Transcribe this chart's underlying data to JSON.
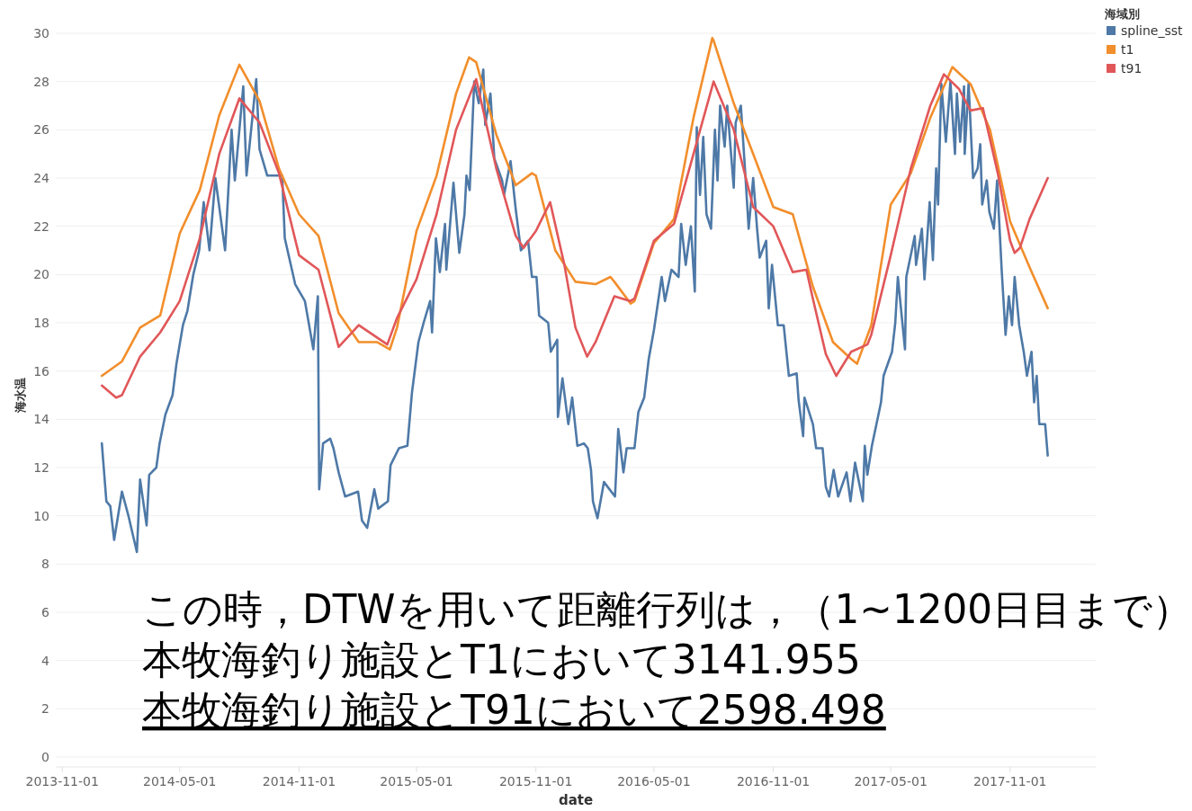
{
  "chart_data": {
    "type": "line",
    "xlabel": "date",
    "ylabel": "海水温",
    "legend_title": "海域別",
    "legend": "top right",
    "grid": "y",
    "xlim": [
      "2013-10-22",
      "2018-03-13"
    ],
    "ylim": [
      0,
      30
    ],
    "xticks": [
      "2013-11-01",
      "2014-05-01",
      "2014-11-01",
      "2015-05-01",
      "2015-11-01",
      "2016-05-01",
      "2016-11-01",
      "2017-05-01",
      "2017-11-01"
    ],
    "yticks": [
      0,
      2,
      4,
      6,
      8,
      10,
      12,
      14,
      16,
      18,
      20,
      22,
      24,
      26,
      28,
      30
    ],
    "annotations": [
      "この時，DTWを用いて距離行列は，（1~1200日目まで）",
      "本牧海釣り施設とT1において3141.955",
      "本牧海釣り施設とT91において2598.498"
    ],
    "series": [
      {
        "name": "spline_sst",
        "color": "#4e79a7",
        "x": [
          "2014-01-01",
          "2014-01-08",
          "2014-01-14",
          "2014-01-20",
          "2014-02-01",
          "2014-02-11",
          "2014-02-24",
          "2014-03-01",
          "2014-03-11",
          "2014-03-15",
          "2014-03-26",
          "2014-03-31",
          "2014-04-09",
          "2014-04-20",
          "2014-04-26",
          "2014-05-06",
          "2014-05-13",
          "2014-05-22",
          "2014-05-31",
          "2014-06-07",
          "2014-06-16",
          "2014-06-25",
          "2014-07-10",
          "2014-07-20",
          "2014-07-25",
          "2014-08-07",
          "2014-08-12",
          "2014-08-27",
          "2014-09-01",
          "2014-09-13",
          "2014-10-06",
          "2014-10-10",
          "2014-10-26",
          "2014-11-10",
          "2014-11-23",
          "2014-11-30",
          "2014-12-02",
          "2014-12-08",
          "2014-12-19",
          "2014-12-24",
          "2015-01-01",
          "2015-01-11",
          "2015-01-31",
          "2015-02-06",
          "2015-02-14",
          "2015-02-25",
          "2015-03-03",
          "2015-03-18",
          "2015-03-22",
          "2015-04-04",
          "2015-04-17",
          "2015-04-24",
          "2015-05-04",
          "2015-05-12",
          "2015-05-22",
          "2015-05-25",
          "2015-05-31",
          "2015-06-06",
          "2015-06-14",
          "2015-06-16",
          "2015-06-27",
          "2015-07-06",
          "2015-07-14",
          "2015-07-17",
          "2015-07-22",
          "2015-07-29",
          "2015-08-05",
          "2015-08-12",
          "2015-08-15",
          "2015-08-23",
          "2015-08-29",
          "2015-09-10",
          "2015-09-13",
          "2015-09-23",
          "2015-10-01",
          "2015-10-09",
          "2015-10-20",
          "2015-10-26",
          "2015-11-02",
          "2015-11-06",
          "2015-11-20",
          "2015-11-24",
          "2015-12-04",
          "2015-12-05",
          "2015-12-12",
          "2015-12-21",
          "2015-12-27",
          "2016-01-04",
          "2016-01-14",
          "2016-01-20",
          "2016-01-25",
          "2016-01-28",
          "2016-02-04",
          "2016-02-14",
          "2016-03-02",
          "2016-03-07",
          "2016-03-15",
          "2016-03-20",
          "2016-04-01",
          "2016-04-07",
          "2016-04-16",
          "2016-04-23",
          "2016-05-01",
          "2016-05-13",
          "2016-05-18",
          "2016-05-28",
          "2016-06-08",
          "2016-06-12",
          "2016-06-19",
          "2016-06-27",
          "2016-07-03",
          "2016-07-06",
          "2016-07-11",
          "2016-07-16",
          "2016-07-21",
          "2016-07-28",
          "2016-08-03",
          "2016-08-07",
          "2016-08-11",
          "2016-08-18",
          "2016-08-22",
          "2016-09-01",
          "2016-09-04",
          "2016-09-12",
          "2016-09-19",
          "2016-09-24",
          "2016-10-01",
          "2016-10-07",
          "2016-10-11",
          "2016-10-21",
          "2016-10-25",
          "2016-10-30",
          "2016-11-08",
          "2016-11-17",
          "2016-11-25",
          "2016-12-07",
          "2016-12-10",
          "2016-12-17",
          "2016-12-19",
          "2017-01-01",
          "2017-01-06",
          "2017-01-16",
          "2017-01-21",
          "2017-01-26",
          "2017-02-02",
          "2017-02-09",
          "2017-02-22",
          "2017-02-28",
          "2017-03-07",
          "2017-03-19",
          "2017-03-22",
          "2017-03-26",
          "2017-04-02",
          "2017-04-09",
          "2017-04-16",
          "2017-04-20",
          "2017-05-03",
          "2017-05-08",
          "2017-05-12",
          "2017-05-23",
          "2017-05-25",
          "2017-06-07",
          "2017-06-09",
          "2017-06-18",
          "2017-06-22",
          "2017-06-30",
          "2017-07-05",
          "2017-07-10",
          "2017-07-13",
          "2017-07-18",
          "2017-07-25",
          "2017-08-01",
          "2017-08-08",
          "2017-08-11",
          "2017-08-16",
          "2017-08-22",
          "2017-08-23",
          "2017-08-29",
          "2017-09-05",
          "2017-09-12",
          "2017-09-16",
          "2017-09-19",
          "2017-09-26",
          "2017-09-30",
          "2017-10-07",
          "2017-10-12",
          "2017-10-19",
          "2017-10-25",
          "2017-10-30",
          "2017-11-04",
          "2017-11-08",
          "2017-11-15",
          "2017-11-22",
          "2017-11-27",
          "2017-12-04",
          "2017-12-08",
          "2017-12-12",
          "2017-12-16",
          "2017-12-25",
          "2017-12-29"
        ],
        "values": [
          13.0,
          10.6,
          10.4,
          9.0,
          11.0,
          10.0,
          8.5,
          11.5,
          9.6,
          11.7,
          12.0,
          13.0,
          14.2,
          15.0,
          16.3,
          17.9,
          18.5,
          20.0,
          21.0,
          23.0,
          21.0,
          24.0,
          21.0,
          26.0,
          23.9,
          27.8,
          24.1,
          28.1,
          25.2,
          24.1,
          24.1,
          21.5,
          19.6,
          18.9,
          16.9,
          19.1,
          11.1,
          13.0,
          13.2,
          12.8,
          11.8,
          10.8,
          11.0,
          9.8,
          9.5,
          11.1,
          10.3,
          10.6,
          12.1,
          12.8,
          12.9,
          15.1,
          17.2,
          18.0,
          18.9,
          17.6,
          21.5,
          20.1,
          22.1,
          20.2,
          23.8,
          20.9,
          22.5,
          24.1,
          23.5,
          28.0,
          27.1,
          28.5,
          26.2,
          27.5,
          24.8,
          23.9,
          23.3,
          24.7,
          22.7,
          21.0,
          21.4,
          19.9,
          19.9,
          18.3,
          18.0,
          16.8,
          17.3,
          14.1,
          15.7,
          13.8,
          14.9,
          12.9,
          13.0,
          12.8,
          11.9,
          10.6,
          9.9,
          11.4,
          10.8,
          13.6,
          11.8,
          12.8,
          12.8,
          14.3,
          14.9,
          16.5,
          17.7,
          19.9,
          18.9,
          20.2,
          19.9,
          22.1,
          20.4,
          22.0,
          19.3,
          26.1,
          23.3,
          25.7,
          22.5,
          21.9,
          26.0,
          23.9,
          27.0,
          25.3,
          27.0,
          23.6,
          26.3,
          27.0,
          24.1,
          21.9,
          24.0,
          21.9,
          20.7,
          21.4,
          18.6,
          20.4,
          17.9,
          17.9,
          15.8,
          15.9,
          14.8,
          13.3,
          14.9,
          13.8,
          12.8,
          12.8,
          11.2,
          10.8,
          11.9,
          10.8,
          11.8,
          10.6,
          12.2,
          10.6,
          12.9,
          11.7,
          12.9,
          13.8,
          14.7,
          15.8,
          16.8,
          18.0,
          19.9,
          16.9,
          19.9,
          21.6,
          20.4,
          21.9,
          19.8,
          23.0,
          20.6,
          24.4,
          22.9,
          27.9,
          25.5,
          28.0,
          25.0,
          27.5,
          25.5,
          27.8,
          25.0,
          27.9,
          24.0,
          24.4,
          25.4,
          22.9,
          23.9,
          22.6,
          21.9,
          23.9,
          20.2,
          17.5,
          19.1,
          17.9,
          19.9,
          17.9,
          16.8,
          15.8,
          16.8,
          14.7,
          15.8,
          13.8,
          13.8,
          12.5
        ]
      },
      {
        "name": "t1",
        "color": "#f28e2b",
        "x": [
          "2014-01-01",
          "2014-02-01",
          "2014-03-01",
          "2014-04-01",
          "2014-05-01",
          "2014-06-01",
          "2014-07-01",
          "2014-08-01",
          "2014-09-01",
          "2014-10-01",
          "2014-11-01",
          "2014-12-01",
          "2015-01-01",
          "2015-02-01",
          "2015-03-01",
          "2015-03-21",
          "2015-04-01",
          "2015-05-01",
          "2015-06-01",
          "2015-07-01",
          "2015-07-21",
          "2015-08-01",
          "2015-09-01",
          "2015-10-01",
          "2015-10-26",
          "2015-11-01",
          "2015-12-01",
          "2016-01-01",
          "2016-02-01",
          "2016-02-24",
          "2016-03-01",
          "2016-03-26",
          "2016-04-01",
          "2016-05-01",
          "2016-06-01",
          "2016-07-01",
          "2016-07-30",
          "2016-08-01",
          "2016-09-01",
          "2016-10-01",
          "2016-11-01",
          "2016-12-01",
          "2017-01-01",
          "2017-02-01",
          "2017-03-01",
          "2017-03-10",
          "2017-04-01",
          "2017-05-01",
          "2017-06-01",
          "2017-07-01",
          "2017-08-04",
          "2017-09-01",
          "2017-10-01",
          "2017-11-01",
          "2017-12-01",
          "2017-12-29"
        ],
        "values": [
          15.8,
          16.4,
          17.8,
          18.3,
          21.7,
          23.5,
          26.6,
          28.7,
          27.2,
          24.4,
          22.5,
          21.6,
          18.4,
          17.2,
          17.2,
          16.9,
          17.8,
          21.8,
          24.1,
          27.5,
          29.0,
          28.8,
          25.8,
          23.7,
          24.2,
          24.1,
          21.0,
          19.7,
          19.6,
          19.9,
          19.7,
          18.8,
          18.9,
          21.3,
          22.3,
          26.5,
          29.8,
          29.7,
          27.1,
          25.0,
          22.8,
          22.5,
          19.5,
          17.2,
          16.5,
          16.3,
          17.9,
          22.9,
          24.2,
          26.5,
          28.6,
          27.9,
          26.0,
          22.2,
          20.3,
          18.6
        ]
      },
      {
        "name": "t91",
        "color": "#e15759",
        "x": [
          "2014-01-01",
          "2014-01-23",
          "2014-02-01",
          "2014-03-01",
          "2014-04-01",
          "2014-05-01",
          "2014-06-01",
          "2014-07-01",
          "2014-08-01",
          "2014-09-01",
          "2014-10-01",
          "2014-11-01",
          "2014-12-01",
          "2015-01-01",
          "2015-02-01",
          "2015-03-17",
          "2015-04-01",
          "2015-05-01",
          "2015-06-01",
          "2015-07-01",
          "2015-08-01",
          "2015-09-01",
          "2015-10-01",
          "2015-10-13",
          "2015-11-01",
          "2015-11-23",
          "2015-12-15",
          "2016-01-01",
          "2016-01-19",
          "2016-02-01",
          "2016-03-01",
          "2016-03-25",
          "2016-04-01",
          "2016-05-01",
          "2016-06-01",
          "2016-07-01",
          "2016-08-01",
          "2016-09-01",
          "2016-10-01",
          "2016-11-01",
          "2016-12-01",
          "2016-12-22",
          "2017-01-01",
          "2017-01-21",
          "2017-02-06",
          "2017-03-01",
          "2017-03-26",
          "2017-04-01",
          "2017-05-01",
          "2017-06-01",
          "2017-07-01",
          "2017-07-22",
          "2017-08-14",
          "2017-09-01",
          "2017-09-20",
          "2017-10-13",
          "2017-11-01",
          "2017-11-08",
          "2017-11-16",
          "2017-12-01",
          "2017-12-29"
        ],
        "values": [
          15.4,
          14.9,
          15.0,
          16.6,
          17.6,
          18.9,
          21.5,
          25.0,
          27.3,
          26.3,
          24.2,
          20.8,
          20.2,
          17.0,
          17.9,
          17.1,
          18.2,
          19.8,
          22.5,
          26.0,
          28.1,
          24.4,
          21.6,
          21.1,
          21.8,
          23.0,
          20.4,
          17.8,
          16.6,
          17.2,
          19.1,
          18.9,
          19.0,
          21.4,
          22.1,
          25.0,
          28.0,
          26.0,
          22.8,
          22.0,
          20.1,
          20.2,
          19.0,
          16.7,
          15.8,
          16.8,
          17.1,
          17.5,
          20.8,
          24.4,
          27.0,
          28.3,
          27.7,
          26.8,
          26.9,
          24.2,
          21.4,
          20.9,
          21.1,
          22.3,
          24.0
        ]
      }
    ]
  }
}
